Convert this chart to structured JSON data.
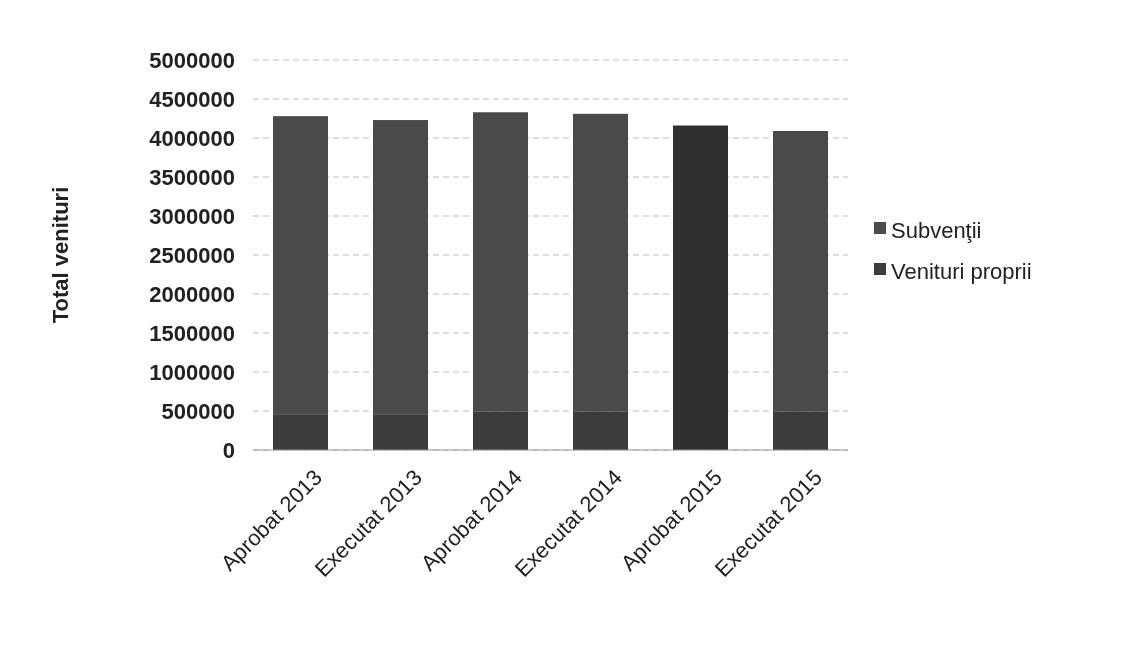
{
  "chart_data": {
    "type": "bar",
    "stacked": true,
    "ylabel": "Total venituri",
    "categories": [
      "Aprobat 2013",
      "Executat 2013",
      "Aprobat 2014",
      "Executat 2014",
      "Aprobat 2015",
      "Executat 2015"
    ],
    "series": [
      {
        "name": "Venituri proprii",
        "color": "#3c3c3c",
        "values": [
          450000,
          450000,
          490000,
          490000,
          0,
          490000
        ]
      },
      {
        "name": "Subvenţii",
        "color": "#4a4a4a",
        "colors": [
          "#4a4a4a",
          "#4a4a4a",
          "#4a4a4a",
          "#4a4a4a",
          "#303030",
          "#4a4a4a"
        ],
        "values": [
          3830000,
          3780000,
          3840000,
          3820000,
          4160000,
          3600000
        ]
      }
    ],
    "ylim": [
      0,
      5000000
    ],
    "yticks": [
      0,
      500000,
      1000000,
      1500000,
      2000000,
      2500000,
      3000000,
      3500000,
      4000000,
      4500000,
      5000000
    ],
    "grid": "y",
    "legend": "right"
  }
}
